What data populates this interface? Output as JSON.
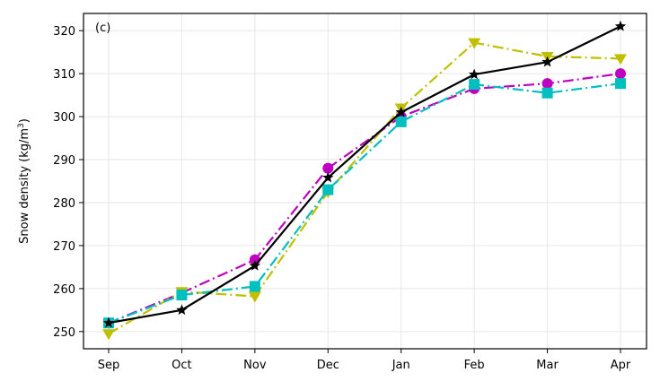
{
  "chart_data": {
    "type": "line",
    "panel_label": "(c)",
    "title": "",
    "xlabel": "",
    "ylabel": "Snow density (kg/m",
    "ylabel_sup": "3",
    "ylabel_tail": ")",
    "categories": [
      "Sep",
      "Oct",
      "Nov",
      "Dec",
      "Jan",
      "Feb",
      "Mar",
      "Apr"
    ],
    "ylim": [
      246,
      324
    ],
    "yticks": [
      250,
      260,
      270,
      280,
      290,
      300,
      310,
      320
    ],
    "grid": true,
    "series": [
      {
        "marker": "circle",
        "color": "#c000c0",
        "dash": "dashdot",
        "values": [
          252.0,
          259.0,
          266.7,
          288.0,
          300.0,
          306.5,
          307.7,
          310.0
        ]
      },
      {
        "marker": "triangle-down",
        "color": "#bfbf00",
        "dash": "dashdot",
        "values": [
          249.5,
          259.3,
          258.2,
          282.5,
          302.0,
          317.2,
          314.0,
          313.5
        ]
      },
      {
        "marker": "square",
        "color": "#00bfbf",
        "dash": "dashdot",
        "values": [
          252.0,
          258.5,
          260.5,
          283.0,
          298.8,
          307.5,
          305.5,
          307.7
        ]
      },
      {
        "marker": "star",
        "color": "#000000",
        "dash": "solid",
        "values": [
          252.0,
          255.0,
          265.3,
          285.8,
          301.0,
          309.8,
          312.7,
          321.0
        ]
      }
    ]
  }
}
